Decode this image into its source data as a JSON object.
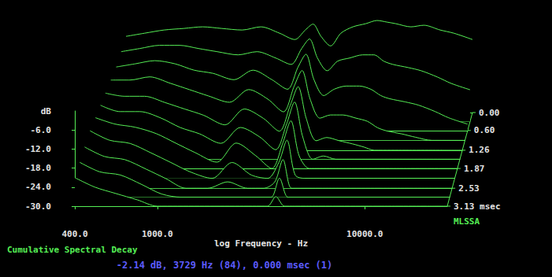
{
  "chart_data": {
    "type": "waterfall",
    "title": "Cumulative Spectral Decay",
    "x_label": "log Frequency - Hz",
    "y_label": "dB",
    "log": "x",
    "grid": false,
    "color": "#55ee55",
    "xlim": [
      400,
      25000
    ],
    "xticks": [
      {
        "value": 400,
        "label": "400.0"
      },
      {
        "value": 1000,
        "label": "1000.0"
      },
      {
        "value": 10000,
        "label": "10000.0"
      }
    ],
    "ylim": [
      -30,
      0
    ],
    "yticks": [
      {
        "value": -30,
        "label": "-30.0"
      },
      {
        "value": -24,
        "label": "-24.0"
      },
      {
        "value": -18,
        "label": "-18.0"
      },
      {
        "value": -12,
        "label": "-12.0"
      },
      {
        "value": -6,
        "label": "-6.0"
      }
    ],
    "zlim": [
      0,
      3.13
    ],
    "zticks": [
      {
        "value": 0,
        "label": "0.00"
      },
      {
        "value": 0.6,
        "label": "0.60"
      },
      {
        "value": 1.26,
        "label": "1.26"
      },
      {
        "value": 1.87,
        "label": "1.87"
      },
      {
        "value": 2.53,
        "label": "2.53"
      },
      {
        "value": 3.13,
        "label": "3.13 msec"
      }
    ],
    "x": [
      400,
      500,
      630,
      800,
      1000,
      1250,
      1600,
      2000,
      2500,
      3000,
      3400,
      3729,
      4100,
      4600,
      5200,
      6000,
      7000,
      8000,
      9000,
      10000,
      12000,
      14000,
      17000,
      20000,
      25000
    ],
    "series": [
      {
        "time": 0,
        "values": [
          -6,
          -5,
          -4,
          -3.5,
          -3,
          -3.5,
          -4,
          -3,
          -5,
          -7,
          -4,
          -2.14,
          -6,
          -9,
          -5,
          -3,
          -2,
          -1,
          -1.5,
          -2,
          -3,
          -2.5,
          -4,
          -5,
          -7
        ]
      },
      {
        "time": 0.3,
        "values": [
          -8,
          -7,
          -6,
          -6,
          -7,
          -8,
          -9,
          -8,
          -10,
          -12,
          -7,
          -4,
          -10,
          -14,
          -11,
          -10,
          -9,
          -9,
          -11,
          -12,
          -13,
          -14,
          -16,
          -18,
          -20
        ]
      },
      {
        "time": 0.6,
        "values": [
          -10,
          -9,
          -8,
          -9,
          -11,
          -12,
          -14,
          -11,
          -14,
          -17,
          -10,
          -6,
          -14,
          -19,
          -17,
          -16,
          -16,
          -17,
          -19,
          -20,
          -21,
          -22,
          -24,
          -26,
          -28
        ]
      },
      {
        "time": 0.93,
        "values": [
          -11,
          -11,
          -10,
          -12,
          -14,
          -16,
          -18,
          -14,
          -17,
          -21,
          -13,
          -8,
          -17,
          -23,
          -22,
          -22,
          -23,
          -24,
          -26,
          -27,
          -28,
          -29,
          -30,
          -30,
          -30
        ]
      },
      {
        "time": 1.26,
        "values": [
          -12,
          -13,
          -13,
          -15,
          -17,
          -19,
          -22,
          -17,
          -20,
          -24,
          -16,
          -10,
          -20,
          -27,
          -26,
          -27,
          -28,
          -29,
          -30,
          -30,
          -30,
          -30,
          -30,
          -30,
          -30
        ]
      },
      {
        "time": 1.56,
        "values": [
          -13,
          -15,
          -15,
          -17,
          -20,
          -22,
          -25,
          -20,
          -23,
          -27,
          -19,
          -12,
          -23,
          -30,
          -29,
          -30,
          -30,
          -30,
          -30,
          -30,
          -30,
          -30,
          -30,
          -30,
          -30
        ]
      },
      {
        "time": 1.87,
        "values": [
          -14,
          -16,
          -17,
          -19,
          -22,
          -25,
          -28,
          -22,
          -26,
          -30,
          -22,
          -15,
          -26,
          -30,
          -30,
          -30,
          -30,
          -30,
          -30,
          -30,
          -30,
          -30,
          -30,
          -30,
          -30
        ]
      },
      {
        "time": 2.2,
        "values": [
          -15,
          -18,
          -19,
          -22,
          -25,
          -28,
          -30,
          -25,
          -29,
          -30,
          -25,
          -18,
          -29,
          -30,
          -30,
          -30,
          -30,
          -30,
          -30,
          -30,
          -30,
          -30,
          -30,
          -30,
          -30
        ]
      },
      {
        "time": 2.53,
        "values": [
          -17,
          -20,
          -21,
          -24,
          -27,
          -30,
          -30,
          -28,
          -30,
          -30,
          -28,
          -21,
          -30,
          -30,
          -30,
          -30,
          -30,
          -30,
          -30,
          -30,
          -30,
          -30,
          -30,
          -30,
          -30
        ]
      },
      {
        "time": 2.83,
        "values": [
          -19,
          -22,
          -23,
          -26,
          -29,
          -30,
          -30,
          -30,
          -30,
          -30,
          -30,
          -24,
          -30,
          -30,
          -30,
          -30,
          -30,
          -30,
          -30,
          -30,
          -30,
          -30,
          -30,
          -30,
          -30
        ]
      },
      {
        "time": 3.13,
        "values": [
          -21,
          -24,
          -26,
          -28,
          -30,
          -30,
          -30,
          -30,
          -30,
          -30,
          -30,
          -27,
          -30,
          -30,
          -30,
          -30,
          -30,
          -30,
          -30,
          -30,
          -30,
          -30,
          -30,
          -30,
          -30
        ]
      }
    ],
    "annotations": [
      "MLSSA",
      "-2.14 dB, 3729 Hz (84), 0.000 msec (1)"
    ]
  }
}
